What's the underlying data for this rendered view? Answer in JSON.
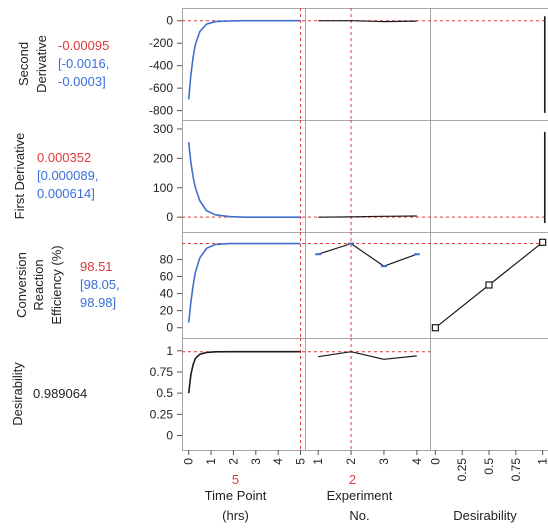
{
  "colors": {
    "value_red": "#e0393c",
    "ci_blue": "#3b6fd9",
    "curve_blue": "#3f6fcf",
    "curve_black": "#1a1a1a",
    "ref_line_red": "#e0393c",
    "grid_border": "#a6a6a6",
    "axis_text": "#222222"
  },
  "columns": [
    {
      "key": "time",
      "label_lines": [
        "Time Point",
        "(hrs)"
      ],
      "current_value": "5",
      "ticks": [
        "0",
        "1",
        "2",
        "3",
        "4",
        "5"
      ],
      "xlim": [
        -0.3,
        5.2
      ]
    },
    {
      "key": "experiment",
      "label_lines": [
        "Experiment",
        "No."
      ],
      "current_value": "2",
      "ticks": [
        "1",
        "2",
        "3",
        "4"
      ],
      "xlim": [
        0.6,
        4.4
      ]
    },
    {
      "key": "desirability",
      "label_lines": [
        "",
        "Desirability"
      ],
      "current_value": "",
      "ticks": [
        "0",
        "0.25",
        "0.5",
        "0.75",
        "1"
      ],
      "xlim": [
        -0.05,
        1.05
      ]
    }
  ],
  "rows": [
    {
      "key": "second_derivative",
      "label_lines": [
        "Second",
        "Derivative"
      ],
      "value": "-0.00095",
      "ci_lines": [
        "[-0.0016,",
        "-0.0003]"
      ],
      "ticks": [
        "0",
        "-200",
        "-400",
        "-600",
        "-800"
      ],
      "ylim": [
        -830,
        60
      ]
    },
    {
      "key": "first_derivative",
      "label_lines": [
        "First Derivative"
      ],
      "value": "0.000352",
      "ci_lines": [
        "[0.000089,",
        "0.000614]"
      ],
      "ticks": [
        "300",
        "200",
        "100",
        "0"
      ],
      "ylim": [
        -30,
        310
      ]
    },
    {
      "key": "conversion",
      "label_lines": [
        "Conversion",
        "Reaction",
        "Efficiency (%)"
      ],
      "value": "98.51",
      "ci_lines": [
        "[98.05,",
        "98.98]"
      ],
      "ticks": [
        "80",
        "40",
        "0",
        "60",
        "20"
      ],
      "ylim": [
        -5,
        105
      ]
    },
    {
      "key": "desirability",
      "label_lines": [
        "Desirability"
      ],
      "value": "0.989064",
      "ci_lines": [],
      "ticks": [
        "1",
        "0.75",
        "0.5",
        "0.25",
        "0"
      ],
      "ylim": [
        -0.1,
        1.08
      ]
    }
  ],
  "chart_data": {
    "type": "line",
    "title": "",
    "current_settings": {
      "time_point_hrs": 5,
      "experiment_no": 2
    },
    "responses": {
      "second_derivative": {
        "value": -0.00095,
        "ci": [
          -0.0016,
          -0.0003
        ],
        "vs_time": {
          "x": [
            0,
            0.1,
            0.2,
            0.3,
            0.5,
            0.8,
            1.2,
            1.8,
            2.5,
            3.5,
            5
          ],
          "y": [
            -700,
            -480,
            -320,
            -210,
            -95,
            -30,
            -8,
            -2,
            0,
            0,
            0
          ]
        },
        "vs_experiment": {
          "x": [
            1,
            2,
            3,
            4
          ],
          "y": [
            0,
            0,
            -8,
            -3
          ]
        }
      },
      "first_derivative": {
        "value": 0.000352,
        "ci": [
          8.9e-05,
          0.000614
        ],
        "vs_time": {
          "x": [
            0,
            0.1,
            0.2,
            0.3,
            0.5,
            0.8,
            1.2,
            1.8,
            2.5,
            3.5,
            5
          ],
          "y": [
            255,
            185,
            135,
            100,
            55,
            22,
            8,
            2,
            0,
            0,
            0
          ]
        },
        "vs_experiment": {
          "x": [
            1,
            2,
            3,
            4
          ],
          "y": [
            0,
            1,
            3,
            4
          ]
        }
      },
      "conversion_efficiency_pct": {
        "value": 98.51,
        "ci": [
          98.05,
          98.98
        ],
        "vs_time": {
          "x": [
            0,
            0.1,
            0.2,
            0.3,
            0.5,
            0.8,
            1.2,
            1.8,
            2.5,
            3.5,
            5
          ],
          "y": [
            6,
            30,
            50,
            65,
            82,
            93,
            97.5,
            98.4,
            98.5,
            98.5,
            98.5
          ]
        },
        "vs_experiment": {
          "x": [
            1,
            2,
            3,
            4
          ],
          "y": [
            86,
            98.5,
            72,
            86
          ]
        },
        "vs_desirability": {
          "x": [
            0,
            0.5,
            1
          ],
          "y": [
            0,
            50,
            100
          ]
        }
      },
      "desirability": {
        "value": 0.989064,
        "vs_time": {
          "x": [
            0,
            0.1,
            0.2,
            0.3,
            0.5,
            0.8,
            1.2,
            1.8,
            2.5,
            3.5,
            5
          ],
          "y": [
            0.5,
            0.72,
            0.84,
            0.91,
            0.96,
            0.98,
            0.988,
            0.989,
            0.989,
            0.989,
            0.989
          ]
        },
        "vs_experiment": {
          "x": [
            1,
            2,
            3,
            4
          ],
          "y": [
            0.93,
            0.989,
            0.9,
            0.94
          ]
        }
      }
    }
  }
}
